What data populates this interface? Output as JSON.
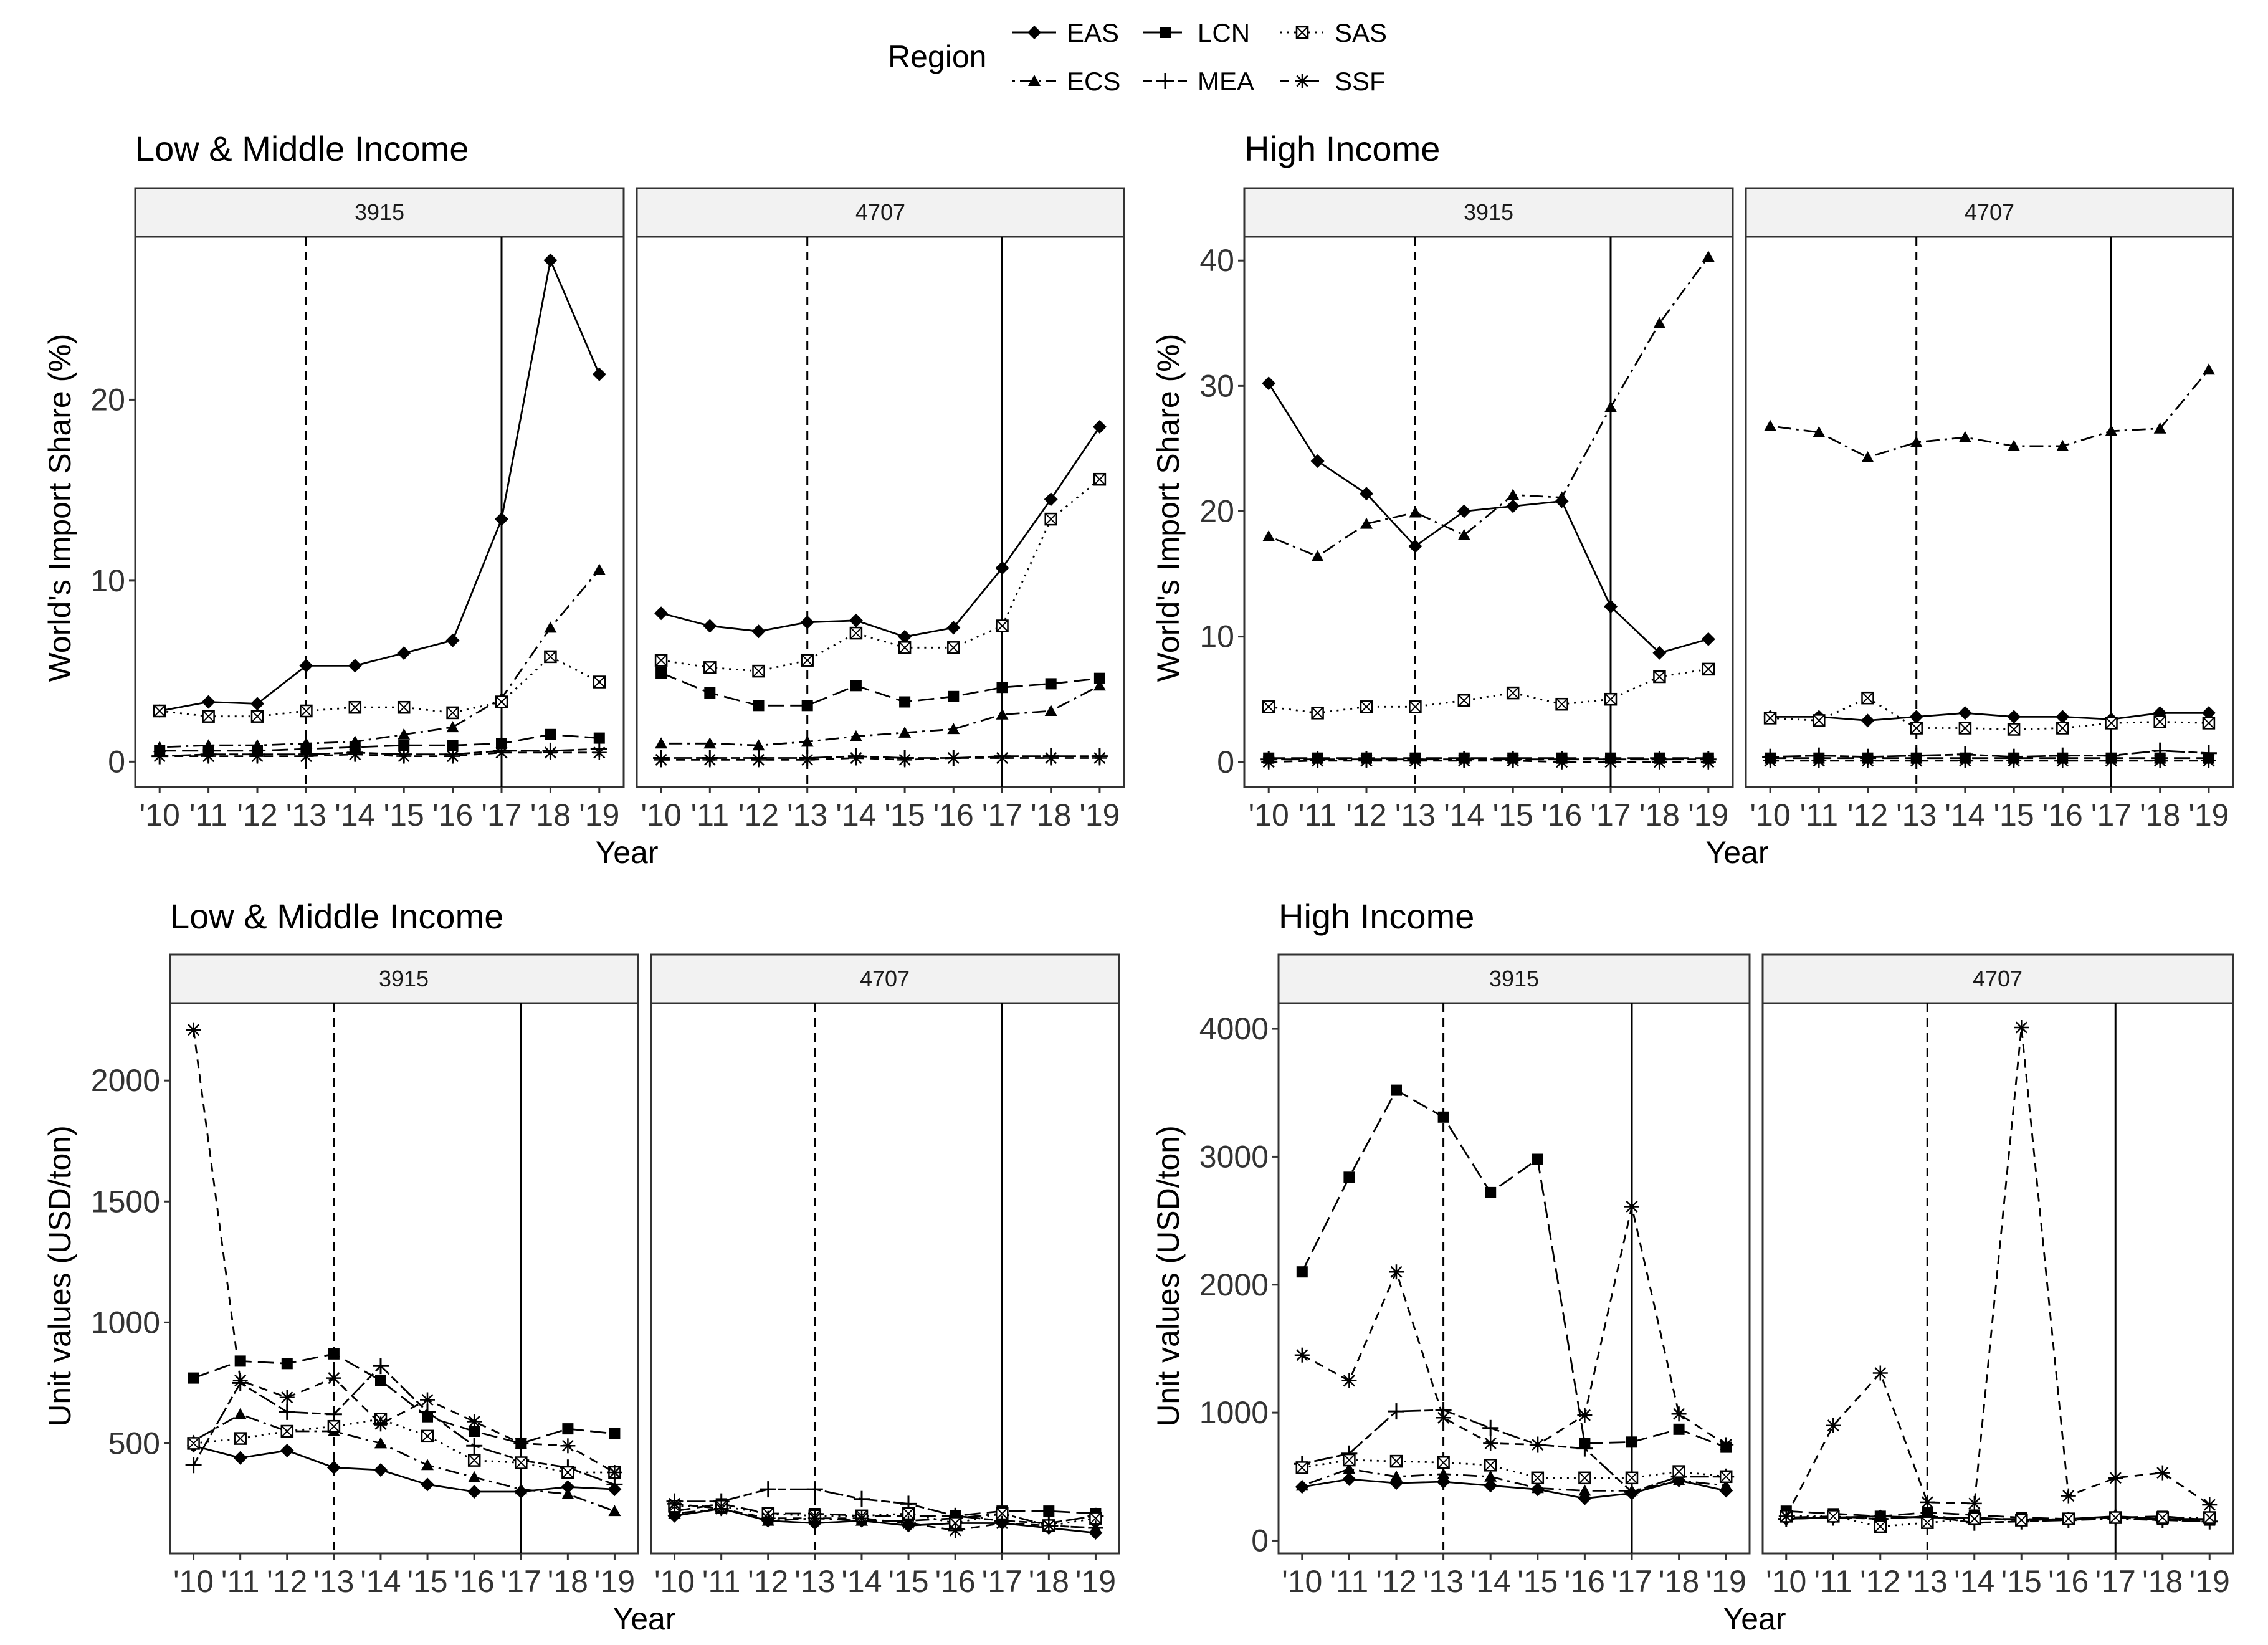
{
  "legend": {
    "title": "Region",
    "entries": [
      {
        "code": "EAS",
        "linetype": "solid",
        "shape": "diamond"
      },
      {
        "code": "ECS",
        "linetype": "dotdash",
        "shape": "triangle"
      },
      {
        "code": "LCN",
        "linetype": "longdash",
        "shape": "square"
      },
      {
        "code": "MEA",
        "linetype": "twodash",
        "shape": "plus"
      },
      {
        "code": "SAS",
        "linetype": "dotted",
        "shape": "boxcross"
      },
      {
        "code": "SSF",
        "linetype": "dashed",
        "shape": "asterisk"
      }
    ]
  },
  "colors": {
    "line": "#000000",
    "strip_bg": "#f2f2f2",
    "panel_border": "#333333",
    "background": "#ffffff"
  },
  "chart_data": [
    {
      "type": "line",
      "title": "Low & Middle Income",
      "xlabel": "Year",
      "ylabel": "World's Import Share (%)",
      "x_tick_labels": [
        "'10",
        "'11",
        "'12",
        "'13",
        "'14",
        "'15",
        "'16",
        "'17",
        "'18",
        "'19"
      ],
      "yticks": [
        0,
        10,
        20
      ],
      "ylim": [
        -1.4,
        29.0
      ],
      "vlines": [
        {
          "year_index": 3,
          "style": "dashed"
        },
        {
          "year_index": 7,
          "style": "solid"
        }
      ],
      "facets": [
        {
          "label": "3915",
          "series": [
            {
              "name": "EAS",
              "values": [
                2.8,
                3.3,
                3.2,
                5.3,
                5.3,
                6.0,
                6.7,
                13.4,
                27.7,
                21.4
              ]
            },
            {
              "name": "ECS",
              "values": [
                0.8,
                0.9,
                0.9,
                1.0,
                1.1,
                1.5,
                1.9,
                3.5,
                7.4,
                10.6
              ]
            },
            {
              "name": "LCN",
              "values": [
                0.6,
                0.6,
                0.6,
                0.7,
                0.8,
                0.9,
                0.9,
                1.0,
                1.5,
                1.3
              ]
            },
            {
              "name": "MEA",
              "values": [
                0.3,
                0.4,
                0.4,
                0.4,
                0.5,
                0.4,
                0.4,
                0.6,
                0.6,
                0.7
              ]
            },
            {
              "name": "SAS",
              "values": [
                2.8,
                2.5,
                2.5,
                2.8,
                3.0,
                3.0,
                2.7,
                3.3,
                5.8,
                4.4
              ]
            },
            {
              "name": "SSF",
              "values": [
                0.3,
                0.3,
                0.3,
                0.3,
                0.4,
                0.3,
                0.3,
                0.5,
                0.5,
                0.5
              ]
            }
          ]
        },
        {
          "label": "4707",
          "series": [
            {
              "name": "EAS",
              "values": [
                8.2,
                7.5,
                7.2,
                7.7,
                7.8,
                6.9,
                7.4,
                10.7,
                14.5,
                18.5
              ]
            },
            {
              "name": "ECS",
              "values": [
                1.0,
                1.0,
                0.9,
                1.1,
                1.4,
                1.6,
                1.8,
                2.6,
                2.8,
                4.2
              ]
            },
            {
              "name": "LCN",
              "values": [
                4.9,
                3.8,
                3.1,
                3.1,
                4.2,
                3.3,
                3.6,
                4.1,
                4.3,
                4.6
              ]
            },
            {
              "name": "MEA",
              "values": [
                0.2,
                0.2,
                0.2,
                0.2,
                0.3,
                0.2,
                0.2,
                0.3,
                0.3,
                0.3
              ]
            },
            {
              "name": "SAS",
              "values": [
                5.6,
                5.2,
                5.0,
                5.6,
                7.1,
                6.3,
                6.3,
                7.5,
                13.4,
                15.6
              ]
            },
            {
              "name": "SSF",
              "values": [
                0.1,
                0.1,
                0.1,
                0.1,
                0.2,
                0.1,
                0.2,
                0.2,
                0.2,
                0.2
              ]
            }
          ]
        }
      ]
    },
    {
      "type": "line",
      "title": "High Income",
      "xlabel": "Year",
      "ylabel": "World's Import Share (%)",
      "x_tick_labels": [
        "'10",
        "'11",
        "'12",
        "'13",
        "'14",
        "'15",
        "'16",
        "'17",
        "'18",
        "'19"
      ],
      "yticks": [
        0,
        10,
        20,
        30,
        40
      ],
      "ylim": [
        -2.0,
        41.9
      ],
      "vlines": [
        {
          "year_index": 3,
          "style": "dashed"
        },
        {
          "year_index": 7,
          "style": "solid"
        }
      ],
      "facets": [
        {
          "label": "3915",
          "series": [
            {
              "name": "EAS",
              "values": [
                30.2,
                24.0,
                21.4,
                17.2,
                20.0,
                20.4,
                20.8,
                12.4,
                8.7,
                9.8
              ]
            },
            {
              "name": "ECS",
              "values": [
                18.0,
                16.4,
                19.0,
                19.9,
                18.1,
                21.3,
                21.1,
                28.3,
                35.0,
                40.3
              ]
            },
            {
              "name": "LCN",
              "values": [
                0.3,
                0.3,
                0.3,
                0.3,
                0.3,
                0.3,
                0.3,
                0.3,
                0.3,
                0.3
              ]
            },
            {
              "name": "MEA",
              "values": [
                0.2,
                0.2,
                0.2,
                0.2,
                0.2,
                0.2,
                0.2,
                0.2,
                0.2,
                0.2
              ]
            },
            {
              "name": "SAS",
              "values": [
                4.4,
                3.9,
                4.4,
                4.4,
                4.9,
                5.5,
                4.6,
                5.0,
                6.8,
                7.4
              ]
            },
            {
              "name": "SSF",
              "values": [
                0.0,
                0.1,
                0.1,
                0.1,
                0.1,
                0.1,
                0.0,
                0.0,
                0.0,
                0.0
              ]
            }
          ]
        },
        {
          "label": "4707",
          "series": [
            {
              "name": "EAS",
              "values": [
                3.6,
                3.6,
                3.3,
                3.6,
                3.9,
                3.6,
                3.6,
                3.4,
                3.9,
                3.9
              ]
            },
            {
              "name": "ECS",
              "values": [
                26.8,
                26.3,
                24.3,
                25.5,
                25.9,
                25.2,
                25.2,
                26.4,
                26.6,
                31.3
              ]
            },
            {
              "name": "LCN",
              "values": [
                0.3,
                0.3,
                0.3,
                0.3,
                0.3,
                0.3,
                0.3,
                0.3,
                0.3,
                0.3
              ]
            },
            {
              "name": "MEA",
              "values": [
                0.4,
                0.5,
                0.4,
                0.5,
                0.6,
                0.4,
                0.5,
                0.5,
                0.9,
                0.7
              ]
            },
            {
              "name": "SAS",
              "values": [
                3.5,
                3.3,
                5.1,
                2.7,
                2.7,
                2.6,
                2.7,
                3.1,
                3.2,
                3.1
              ]
            },
            {
              "name": "SSF",
              "values": [
                0.1,
                0.1,
                0.1,
                0.1,
                0.1,
                0.1,
                0.1,
                0.1,
                0.1,
                0.1
              ]
            }
          ]
        }
      ]
    },
    {
      "type": "line",
      "title": "Low & Middle Income",
      "xlabel": "Year",
      "ylabel": "Unit values (USD/ton)",
      "x_tick_labels": [
        "'10",
        "'11",
        "'12",
        "'13",
        "'14",
        "'15",
        "'16",
        "'17",
        "'18",
        "'19"
      ],
      "yticks": [
        500,
        1000,
        1500,
        2000
      ],
      "ylim": [
        45,
        2320
      ],
      "vlines": [
        {
          "year_index": 3,
          "style": "dashed"
        },
        {
          "year_index": 7,
          "style": "solid"
        }
      ],
      "facets": [
        {
          "label": "3915",
          "series": [
            {
              "name": "EAS",
              "values": [
                490,
                440,
                470,
                400,
                390,
                330,
                300,
                300,
                320,
                310
              ]
            },
            {
              "name": "ECS",
              "values": [
                510,
                620,
                550,
                550,
                500,
                410,
                360,
                310,
                290,
                220
              ]
            },
            {
              "name": "LCN",
              "values": [
                770,
                840,
                830,
                870,
                760,
                610,
                550,
                500,
                560,
                540
              ]
            },
            {
              "name": "MEA",
              "values": [
                410,
                750,
                630,
                620,
                820,
                630,
                490,
                430,
                400,
                330
              ]
            },
            {
              "name": "SAS",
              "values": [
                500,
                520,
                550,
                570,
                600,
                530,
                430,
                420,
                380,
                380
              ]
            },
            {
              "name": "SSF",
              "values": [
                2210,
                760,
                690,
                770,
                580,
                680,
                590,
                500,
                490,
                380
              ]
            }
          ]
        },
        {
          "label": "4707",
          "series": [
            {
              "name": "EAS",
              "values": [
                200,
                230,
                180,
                170,
                180,
                160,
                170,
                170,
                150,
                130
              ]
            },
            {
              "name": "ECS",
              "values": [
                210,
                230,
                180,
                190,
                180,
                180,
                190,
                210,
                160,
                150
              ]
            },
            {
              "name": "LCN",
              "values": [
                220,
                250,
                210,
                210,
                200,
                200,
                200,
                220,
                220,
                210
              ]
            },
            {
              "name": "MEA",
              "values": [
                260,
                260,
                310,
                310,
                270,
                250,
                200,
                180,
                170,
                200
              ]
            },
            {
              "name": "SAS",
              "values": [
                240,
                240,
                210,
                200,
                200,
                210,
                170,
                210,
                160,
                190
              ]
            },
            {
              "name": "SSF",
              "values": [
                250,
                230,
                190,
                190,
                190,
                170,
                140,
                170,
                160,
                150
              ]
            }
          ]
        }
      ]
    },
    {
      "type": "line",
      "title": "High Income",
      "xlabel": "Year",
      "ylabel": "Unit values (USD/ton)",
      "x_tick_labels": [
        "'10",
        "'11",
        "'12",
        "'13",
        "'14",
        "'15",
        "'16",
        "'17",
        "'18",
        "'19"
      ],
      "yticks": [
        0,
        1000,
        2000,
        3000,
        4000
      ],
      "ylim": [
        -100,
        4200
      ],
      "vlines": [
        {
          "year_index": 3,
          "style": "dashed"
        },
        {
          "year_index": 7,
          "style": "solid"
        }
      ],
      "facets": [
        {
          "label": "3915",
          "series": [
            {
              "name": "EAS",
              "values": [
                420,
                480,
                450,
                460,
                430,
                400,
                330,
                370,
                470,
                390
              ]
            },
            {
              "name": "ECS",
              "values": [
                430,
                560,
                500,
                520,
                500,
                410,
                390,
                390,
                470,
                430
              ]
            },
            {
              "name": "LCN",
              "values": [
                2100,
                2840,
                3520,
                3310,
                2720,
                2980,
                760,
                770,
                870,
                730
              ]
            },
            {
              "name": "MEA",
              "values": [
                600,
                680,
                1010,
                1020,
                880,
                750,
                720,
                380,
                500,
                500
              ]
            },
            {
              "name": "SAS",
              "values": [
                570,
                630,
                620,
                610,
                590,
                490,
                490,
                490,
                540,
                500
              ]
            },
            {
              "name": "SSF",
              "values": [
                1450,
                1250,
                2100,
                960,
                760,
                750,
                980,
                2610,
                990,
                750
              ]
            }
          ]
        },
        {
          "label": "4707",
          "series": [
            {
              "name": "EAS",
              "values": [
                170,
                180,
                190,
                180,
                180,
                160,
                170,
                190,
                170,
                170
              ]
            },
            {
              "name": "ECS",
              "values": [
                180,
                190,
                170,
                190,
                170,
                170,
                160,
                170,
                160,
                160
              ]
            },
            {
              "name": "LCN",
              "values": [
                230,
                210,
                190,
                220,
                200,
                180,
                170,
                180,
                190,
                160
              ]
            },
            {
              "name": "MEA",
              "values": [
                170,
                180,
                170,
                190,
                140,
                150,
                160,
                180,
                160,
                150
              ]
            },
            {
              "name": "SAS",
              "values": [
                190,
                190,
                110,
                140,
                170,
                160,
                170,
                180,
                180,
                180
              ]
            },
            {
              "name": "SSF",
              "values": [
                190,
                900,
                1310,
                300,
                290,
                4010,
                350,
                490,
                530,
                280
              ]
            }
          ]
        }
      ]
    }
  ]
}
